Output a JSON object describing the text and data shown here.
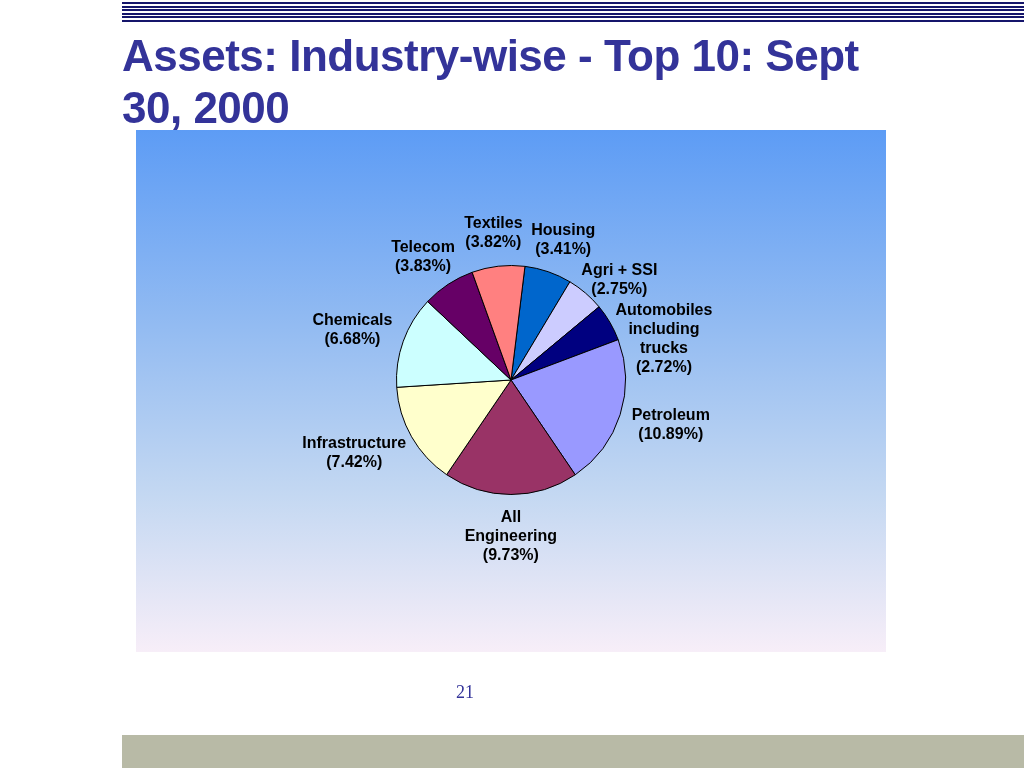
{
  "chart_data": {
    "type": "pie",
    "title": "Assets: Industry-wise - Top 10: Sept 30, 2000",
    "categories": [
      "Housing",
      "Agri + SSI",
      "Automobiles including trucks",
      "Petroleum",
      "All Engineering",
      "Infrastructure",
      "Chemicals",
      "Telecom",
      "Textiles"
    ],
    "values": [
      3.41,
      2.75,
      2.72,
      10.89,
      9.73,
      7.42,
      6.68,
      3.83,
      3.82
    ],
    "colors": [
      "#0066cc",
      "#ccccff",
      "#000080",
      "#9999ff",
      "#993366",
      "#ffffcc",
      "#ccffff",
      "#660066",
      "#ff8080"
    ],
    "value_labels": [
      "(3.41%)",
      "(2.75%)",
      "(2.72%)",
      "(10.89%)",
      "(9.73%)",
      "(7.42%)",
      "(6.68%)",
      "(3.83%)",
      "(3.82%)"
    ],
    "annotations": [
      "21"
    ]
  }
}
